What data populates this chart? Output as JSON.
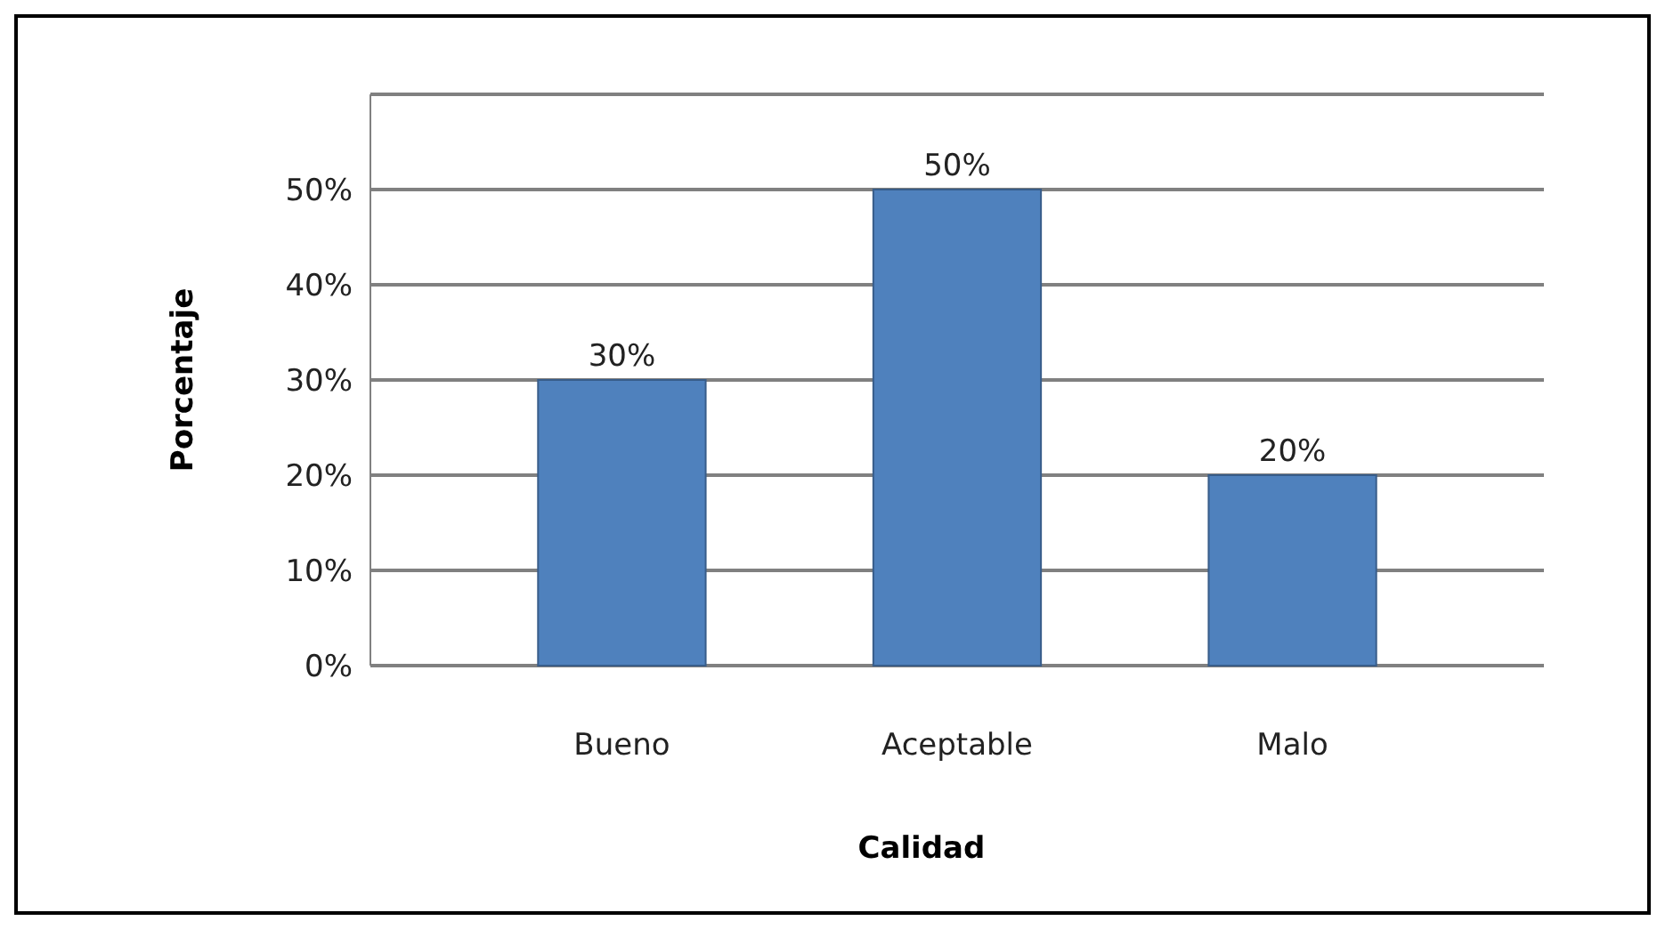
{
  "chart_data": {
    "type": "bar",
    "xlabel": "Calidad",
    "ylabel": "Porcentaje",
    "categories": [
      "Bueno",
      "Aceptable",
      "Malo"
    ],
    "values": [
      30,
      50,
      20
    ],
    "color": "#4f81bd",
    "value_labels": [
      "30%",
      "50%",
      "20%"
    ],
    "ylim": [
      0,
      60
    ],
    "yticks": [
      {
        "value": 0,
        "label": "0%"
      },
      {
        "value": 10,
        "label": "10%"
      },
      {
        "value": 20,
        "label": "20%"
      },
      {
        "value": 30,
        "label": "30%"
      },
      {
        "value": 40,
        "label": "40%"
      },
      {
        "value": 50,
        "label": "50%"
      },
      {
        "value": 60,
        "label": null
      }
    ],
    "grid": "y"
  }
}
